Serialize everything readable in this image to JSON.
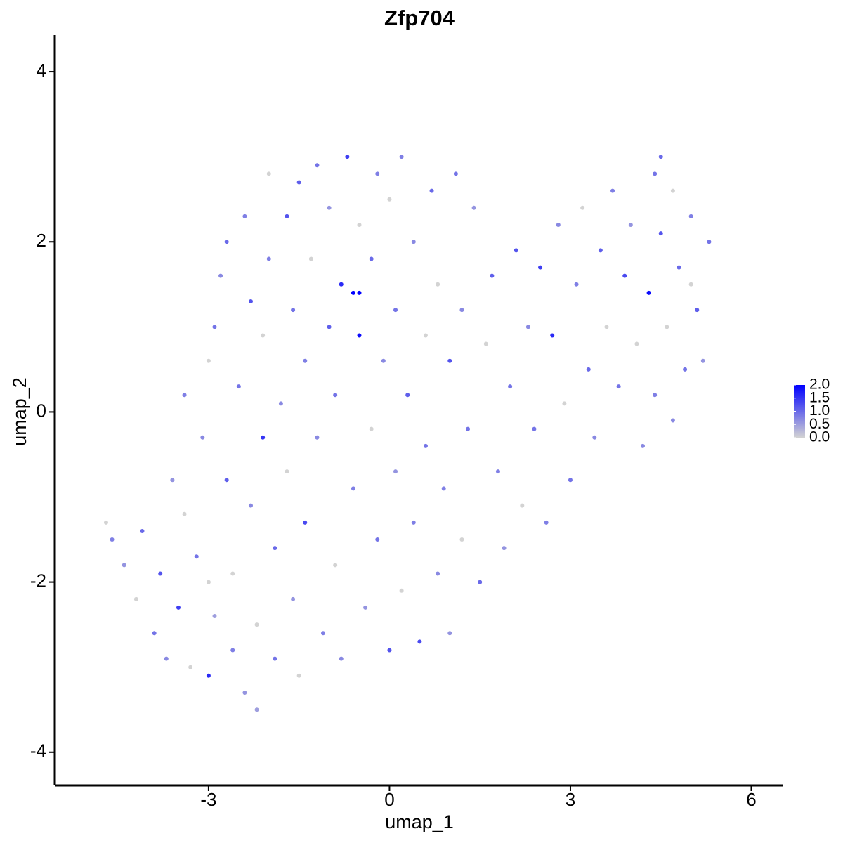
{
  "chart_data": {
    "type": "scatter",
    "title": "Zfp704",
    "x_label": "umap_1",
    "y_label": "umap_2",
    "xlim": [
      -5.55,
      6.53
    ],
    "ylim": [
      -4.39,
      4.43
    ],
    "xticks": [
      -3,
      0,
      3,
      6
    ],
    "yticks": [
      -4,
      -2,
      0,
      2,
      4
    ],
    "low_color": "#d3d3d3",
    "high_color": "#0000ff",
    "clim": [
      0,
      2
    ],
    "colorbar_ticks": [
      {
        "value": 0,
        "label": "0.0"
      },
      {
        "value": 0.5,
        "label": "0.5"
      },
      {
        "value": 1,
        "label": "1.0"
      },
      {
        "value": 1.5,
        "label": "1.5"
      },
      {
        "value": 2,
        "label": "2.0"
      }
    ],
    "x": [
      -4.7,
      -4.6,
      -4.4,
      -4.2,
      -4.1,
      -3.9,
      -3.8,
      -3.7,
      -3.6,
      -3.5,
      -3.4,
      -3.4,
      -3.3,
      -3.2,
      -3.1,
      -3.0,
      -3.0,
      -2.9,
      -2.9,
      -2.8,
      -2.7,
      -2.7,
      -2.6,
      -2.6,
      -2.5,
      -2.4,
      -2.4,
      -2.3,
      -2.3,
      -2.2,
      -2.2,
      -2.1,
      -2.1,
      -2.0,
      -2.0,
      -1.9,
      -1.9,
      -1.8,
      -1.7,
      -1.7,
      -1.6,
      -1.6,
      -1.5,
      -1.5,
      -1.4,
      -1.4,
      -1.3,
      -1.2,
      -1.2,
      -1.1,
      -1.0,
      -1.0,
      -0.9,
      -0.9,
      -0.8,
      -0.8,
      -0.7,
      -0.6,
      -0.6,
      -0.5,
      -0.5,
      -0.4,
      -0.3,
      -0.3,
      -0.2,
      -0.2,
      -0.1,
      0.0,
      0.0,
      0.1,
      0.1,
      0.2,
      0.2,
      0.3,
      0.4,
      0.4,
      0.5,
      0.6,
      0.6,
      0.7,
      0.8,
      0.8,
      0.9,
      1.0,
      1.0,
      1.1,
      1.2,
      1.2,
      1.3,
      1.4,
      1.5,
      1.6,
      1.7,
      1.8,
      1.9,
      2.0,
      2.1,
      2.2,
      2.3,
      2.4,
      2.5,
      2.6,
      2.7,
      2.8,
      2.9,
      3.0,
      3.1,
      3.2,
      3.3,
      3.4,
      3.5,
      3.6,
      3.7,
      3.8,
      3.9,
      4.0,
      4.1,
      4.2,
      4.3,
      4.4,
      4.4,
      4.5,
      4.6,
      4.7,
      4.7,
      4.8,
      4.9,
      5.0,
      5.1,
      5.2,
      5.3,
      5.0,
      4.5,
      -0.5,
      -3.0
    ],
    "y": [
      -1.3,
      -1.5,
      -1.8,
      -2.2,
      -1.4,
      -2.6,
      -1.9,
      -2.9,
      -0.8,
      -2.3,
      -1.2,
      0.2,
      -3.0,
      -1.7,
      -0.3,
      0.6,
      -3.1,
      -2.4,
      1.0,
      1.6,
      -0.8,
      2.0,
      -1.9,
      -2.8,
      0.3,
      -3.3,
      2.3,
      1.3,
      -1.1,
      -2.5,
      -3.5,
      0.9,
      -0.3,
      2.8,
      1.8,
      -1.6,
      -2.9,
      0.1,
      2.3,
      -0.7,
      1.2,
      -2.2,
      2.7,
      -3.1,
      0.6,
      -1.3,
      1.8,
      2.9,
      -0.3,
      -2.6,
      1.0,
      2.4,
      -1.8,
      0.2,
      1.5,
      -2.9,
      3.0,
      1.4,
      -0.9,
      2.2,
      0.9,
      -2.3,
      1.8,
      -0.2,
      2.8,
      -1.5,
      0.6,
      -2.8,
      2.5,
      1.2,
      -0.7,
      3.0,
      -2.1,
      0.2,
      -1.3,
      2.0,
      -2.7,
      0.9,
      -0.4,
      2.6,
      -1.9,
      1.5,
      -0.9,
      0.6,
      -2.6,
      2.8,
      -1.5,
      1.2,
      -0.2,
      2.4,
      -2.0,
      0.8,
      1.6,
      -0.7,
      -1.6,
      0.3,
      1.9,
      -1.1,
      1.0,
      -0.2,
      1.7,
      -1.3,
      0.9,
      2.2,
      0.1,
      -0.8,
      1.5,
      2.4,
      0.5,
      -0.3,
      1.9,
      1.0,
      2.6,
      0.3,
      1.6,
      2.2,
      0.8,
      -0.4,
      1.4,
      2.8,
      0.2,
      2.1,
      1.0,
      2.6,
      -0.1,
      1.7,
      0.5,
      2.3,
      1.2,
      0.6,
      2.0,
      1.5,
      3.0,
      1.4,
      -2.0
    ],
    "values": [
      0,
      0.8,
      0.6,
      0,
      1.0,
      0.9,
      1.2,
      0.7,
      0.6,
      1.4,
      0,
      0.8,
      0,
      0.9,
      0.7,
      0,
      1.6,
      0.5,
      0.9,
      0.7,
      1.1,
      1.0,
      0,
      0.8,
      0.9,
      0.6,
      0.8,
      1.2,
      0.7,
      0,
      0.5,
      0,
      1.5,
      0,
      0.8,
      1.0,
      0.9,
      0.7,
      1.2,
      0,
      0.9,
      0.6,
      1.1,
      0,
      0.8,
      1.3,
      0,
      0.9,
      0.7,
      0.8,
      1.1,
      0.6,
      0,
      0.9,
      1.6,
      0.7,
      1.4,
      2.0,
      0.8,
      0,
      1.9,
      0.6,
      1.0,
      0,
      0.8,
      0.9,
      0.7,
      1.2,
      0,
      0.9,
      0.6,
      0.8,
      0,
      1.1,
      0.8,
      0.7,
      1.3,
      0,
      0.9,
      1.0,
      0.7,
      0,
      0.8,
      1.2,
      0.6,
      0.9,
      0,
      0.7,
      0.9,
      0.6,
      1.0,
      0,
      1.1,
      0.8,
      0.6,
      0.9,
      1.2,
      0,
      0.7,
      0.9,
      1.4,
      0.8,
      1.6,
      0.7,
      0,
      0.9,
      0.8,
      0,
      1.0,
      0.7,
      1.1,
      0,
      0.8,
      0.9,
      1.3,
      0.6,
      0,
      0.7,
      1.9,
      0.9,
      0.8,
      1.2,
      0,
      0,
      0.7,
      1.0,
      0.9,
      0.8,
      1.1,
      0.6,
      0.9,
      0,
      1.0,
      2.0,
      0
    ]
  }
}
